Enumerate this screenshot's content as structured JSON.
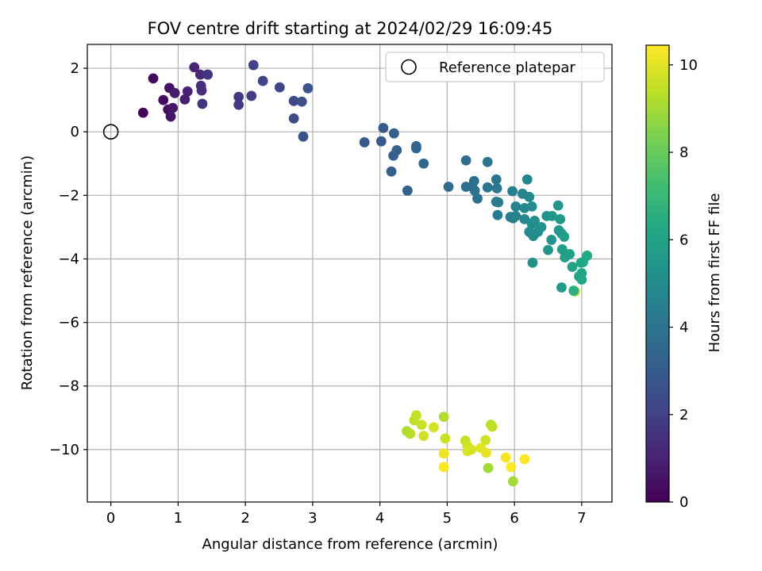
{
  "chart_data": {
    "type": "scatter",
    "title": "FOV centre drift starting at 2024/02/29 16:09:45",
    "xlabel": "Angular distance from reference (arcmin)",
    "ylabel": "Rotation from reference (arcmin)",
    "xlim": [
      -0.35,
      7.45
    ],
    "ylim": [
      -11.65,
      2.75
    ],
    "xticks": [
      0,
      1,
      2,
      3,
      4,
      5,
      6,
      7
    ],
    "xtick_labels": [
      "0",
      "1",
      "2",
      "3",
      "4",
      "5",
      "6",
      "7"
    ],
    "yticks": [
      2,
      0,
      -2,
      -4,
      -6,
      -8,
      -10
    ],
    "ytick_labels": [
      "2",
      "0",
      "−2",
      "−4",
      "−6",
      "−8",
      "−10"
    ],
    "grid": true,
    "legend": {
      "position": "top-right",
      "entries": [
        "Reference platepar"
      ]
    },
    "reference_point": {
      "label": "Reference platepar",
      "x": 0,
      "y": 0
    },
    "colorbar": {
      "label": "Hours from first FF file",
      "colormap": "viridis",
      "range": [
        0,
        10.45
      ],
      "ticks": [
        0,
        2,
        4,
        6,
        8,
        10
      ],
      "tick_labels": [
        "0",
        "2",
        "4",
        "6",
        "8",
        "10"
      ]
    },
    "points": [
      {
        "x": 0.48,
        "y": 0.6,
        "h": 0.1
      },
      {
        "x": 0.63,
        "y": 1.68,
        "h": 0.2
      },
      {
        "x": 0.78,
        "y": 1.0,
        "h": 0.3
      },
      {
        "x": 0.85,
        "y": 0.7,
        "h": 0.4
      },
      {
        "x": 0.87,
        "y": 1.38,
        "h": 0.5
      },
      {
        "x": 0.89,
        "y": 0.48,
        "h": 0.6
      },
      {
        "x": 0.92,
        "y": 0.75,
        "h": 0.7
      },
      {
        "x": 0.95,
        "y": 1.22,
        "h": 0.8
      },
      {
        "x": 1.1,
        "y": 1.02,
        "h": 0.9
      },
      {
        "x": 1.14,
        "y": 1.27,
        "h": 1.0
      },
      {
        "x": 1.24,
        "y": 2.03,
        "h": 1.1
      },
      {
        "x": 1.33,
        "y": 1.8,
        "h": 1.2
      },
      {
        "x": 1.34,
        "y": 1.45,
        "h": 1.3
      },
      {
        "x": 1.35,
        "y": 1.3,
        "h": 1.4
      },
      {
        "x": 1.36,
        "y": 0.88,
        "h": 1.5
      },
      {
        "x": 1.44,
        "y": 1.8,
        "h": 1.6
      },
      {
        "x": 1.9,
        "y": 1.1,
        "h": 1.7
      },
      {
        "x": 1.9,
        "y": 0.85,
        "h": 1.8
      },
      {
        "x": 2.09,
        "y": 1.13,
        "h": 1.9
      },
      {
        "x": 2.12,
        "y": 2.1,
        "h": 2.0
      },
      {
        "x": 2.26,
        "y": 1.6,
        "h": 2.1
      },
      {
        "x": 2.51,
        "y": 1.4,
        "h": 2.2
      },
      {
        "x": 2.72,
        "y": 0.97,
        "h": 2.3
      },
      {
        "x": 2.72,
        "y": 0.42,
        "h": 2.4
      },
      {
        "x": 2.84,
        "y": 0.95,
        "h": 2.5
      },
      {
        "x": 2.86,
        "y": -0.15,
        "h": 2.6
      },
      {
        "x": 2.93,
        "y": 1.37,
        "h": 2.7
      },
      {
        "x": 3.77,
        "y": -0.33,
        "h": 2.9
      },
      {
        "x": 4.02,
        "y": -0.3,
        "h": 3.0
      },
      {
        "x": 4.05,
        "y": 0.12,
        "h": 3.05
      },
      {
        "x": 4.17,
        "y": -1.25,
        "h": 3.1
      },
      {
        "x": 4.2,
        "y": -0.75,
        "h": 3.15
      },
      {
        "x": 4.21,
        "y": -0.05,
        "h": 3.2
      },
      {
        "x": 4.25,
        "y": -0.58,
        "h": 3.25
      },
      {
        "x": 4.41,
        "y": -1.85,
        "h": 3.3
      },
      {
        "x": 4.54,
        "y": -0.45,
        "h": 3.35
      },
      {
        "x": 4.54,
        "y": -0.52,
        "h": 3.4
      },
      {
        "x": 4.65,
        "y": -1.0,
        "h": 3.45
      },
      {
        "x": 5.02,
        "y": -1.73,
        "h": 3.6
      },
      {
        "x": 5.28,
        "y": -0.9,
        "h": 3.7
      },
      {
        "x": 5.28,
        "y": -1.73,
        "h": 3.75
      },
      {
        "x": 5.37,
        "y": -1.72,
        "h": 3.8
      },
      {
        "x": 5.4,
        "y": -1.55,
        "h": 3.85
      },
      {
        "x": 5.41,
        "y": -1.85,
        "h": 3.9
      },
      {
        "x": 5.45,
        "y": -2.1,
        "h": 3.95
      },
      {
        "x": 5.6,
        "y": -0.95,
        "h": 4.0
      },
      {
        "x": 5.6,
        "y": -1.75,
        "h": 4.05
      },
      {
        "x": 5.73,
        "y": -1.5,
        "h": 4.1
      },
      {
        "x": 5.74,
        "y": -1.78,
        "h": 4.15
      },
      {
        "x": 5.73,
        "y": -2.2,
        "h": 4.2
      },
      {
        "x": 5.75,
        "y": -2.62,
        "h": 4.25
      },
      {
        "x": 5.76,
        "y": -2.22,
        "h": 4.3
      },
      {
        "x": 5.94,
        "y": -2.68,
        "h": 4.4
      },
      {
        "x": 5.97,
        "y": -1.87,
        "h": 4.5
      },
      {
        "x": 5.98,
        "y": -2.72,
        "h": 4.55
      },
      {
        "x": 6.02,
        "y": -2.35,
        "h": 4.6
      },
      {
        "x": 6.02,
        "y": -2.65,
        "h": 4.65
      },
      {
        "x": 6.12,
        "y": -1.95,
        "h": 4.7
      },
      {
        "x": 6.15,
        "y": -2.4,
        "h": 4.75
      },
      {
        "x": 6.15,
        "y": -2.75,
        "h": 4.8
      },
      {
        "x": 6.19,
        "y": -1.5,
        "h": 4.85
      },
      {
        "x": 6.22,
        "y": -2.05,
        "h": 4.9
      },
      {
        "x": 6.22,
        "y": -3.15,
        "h": 4.95
      },
      {
        "x": 6.26,
        "y": -2.35,
        "h": 5.0
      },
      {
        "x": 6.26,
        "y": -2.9,
        "h": 5.05
      },
      {
        "x": 6.28,
        "y": -3.28,
        "h": 5.1
      },
      {
        "x": 6.3,
        "y": -2.8,
        "h": 5.15
      },
      {
        "x": 6.35,
        "y": -3.15,
        "h": 5.2
      },
      {
        "x": 6.4,
        "y": -3.0,
        "h": 5.25
      },
      {
        "x": 6.48,
        "y": -2.65,
        "h": 5.3
      },
      {
        "x": 6.5,
        "y": -3.72,
        "h": 5.35
      },
      {
        "x": 6.55,
        "y": -3.4,
        "h": 5.4
      },
      {
        "x": 6.56,
        "y": -2.65,
        "h": 5.45
      },
      {
        "x": 6.65,
        "y": -2.32,
        "h": 5.5
      },
      {
        "x": 6.66,
        "y": -3.1,
        "h": 5.55
      },
      {
        "x": 6.68,
        "y": -2.75,
        "h": 5.6
      },
      {
        "x": 6.7,
        "y": -3.2,
        "h": 5.7
      },
      {
        "x": 6.71,
        "y": -3.7,
        "h": 5.75
      },
      {
        "x": 6.74,
        "y": -3.3,
        "h": 5.8
      },
      {
        "x": 6.75,
        "y": -3.95,
        "h": 5.85
      },
      {
        "x": 6.82,
        "y": -3.85,
        "h": 5.9
      },
      {
        "x": 6.86,
        "y": -4.25,
        "h": 5.95
      },
      {
        "x": 6.96,
        "y": -4.55,
        "h": 6.05
      },
      {
        "x": 6.99,
        "y": -4.12,
        "h": 6.1
      },
      {
        "x": 7.0,
        "y": -4.45,
        "h": 6.15
      },
      {
        "x": 7.0,
        "y": -4.65,
        "h": 6.2
      },
      {
        "x": 7.02,
        "y": -4.1,
        "h": 6.25
      },
      {
        "x": 7.08,
        "y": -3.9,
        "h": 6.3
      },
      {
        "x": 6.27,
        "y": -4.12,
        "h": 5.3
      },
      {
        "x": 6.7,
        "y": -4.9,
        "h": 5.65
      },
      {
        "x": 6.9,
        "y": -5.02,
        "h": 9.2
      },
      {
        "x": 6.88,
        "y": -5.0,
        "h": 6.6
      },
      {
        "x": 4.4,
        "y": -9.42,
        "h": 9.2
      },
      {
        "x": 4.45,
        "y": -9.5,
        "h": 9.3
      },
      {
        "x": 4.51,
        "y": -9.08,
        "h": 9.4
      },
      {
        "x": 4.54,
        "y": -8.92,
        "h": 9.5
      },
      {
        "x": 4.62,
        "y": -9.22,
        "h": 9.6
      },
      {
        "x": 4.65,
        "y": -9.57,
        "h": 9.7
      },
      {
        "x": 4.8,
        "y": -9.3,
        "h": 9.8
      },
      {
        "x": 4.95,
        "y": -8.97,
        "h": 9.2
      },
      {
        "x": 4.97,
        "y": -9.65,
        "h": 9.6
      },
      {
        "x": 4.95,
        "y": -10.12,
        "h": 10.2
      },
      {
        "x": 4.95,
        "y": -10.55,
        "h": 10.4
      },
      {
        "x": 5.27,
        "y": -9.72,
        "h": 9.5
      },
      {
        "x": 5.3,
        "y": -9.88,
        "h": 9.7
      },
      {
        "x": 5.3,
        "y": -10.05,
        "h": 9.9
      },
      {
        "x": 5.36,
        "y": -10.0,
        "h": 9.8
      },
      {
        "x": 5.5,
        "y": -9.95,
        "h": 10.0
      },
      {
        "x": 5.57,
        "y": -9.7,
        "h": 9.7
      },
      {
        "x": 5.58,
        "y": -10.1,
        "h": 10.1
      },
      {
        "x": 5.65,
        "y": -9.22,
        "h": 9.3
      },
      {
        "x": 5.67,
        "y": -9.28,
        "h": 9.4
      },
      {
        "x": 5.61,
        "y": -10.58,
        "h": 9.0
      },
      {
        "x": 5.87,
        "y": -10.25,
        "h": 10.3
      },
      {
        "x": 5.95,
        "y": -10.55,
        "h": 10.4
      },
      {
        "x": 5.98,
        "y": -11.0,
        "h": 9.0
      },
      {
        "x": 6.15,
        "y": -10.3,
        "h": 10.45
      }
    ]
  }
}
